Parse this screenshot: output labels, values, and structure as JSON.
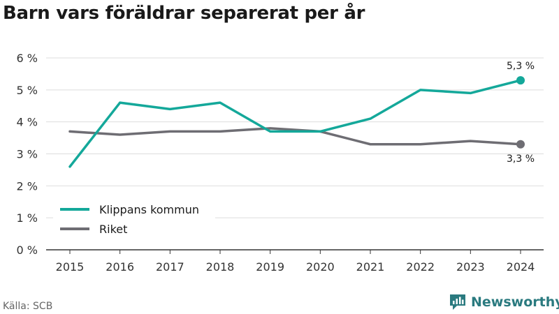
{
  "title": "Barn vars föräldrar separerat per år",
  "source": "Källa: SCB",
  "brand": "Newsworthy",
  "colors": {
    "klippan": "#14a89a",
    "riket": "#6e6d73",
    "grid": "#dddddd",
    "axis": "#333333",
    "brand": "#2a7a7f"
  },
  "icons": {
    "logo": "newsworthy-logo-icon"
  },
  "chart_data": {
    "type": "line",
    "title": "Barn vars föräldrar separerat per år",
    "x": [
      "2015",
      "2016",
      "2017",
      "2018",
      "2019",
      "2020",
      "2021",
      "2022",
      "2023",
      "2024"
    ],
    "y_ticks": [
      "0 %",
      "1 %",
      "2 %",
      "3 %",
      "4 %",
      "5 %",
      "6 %"
    ],
    "ylim": [
      0,
      6
    ],
    "grid": true,
    "legend_position": "bottom-left",
    "series": [
      {
        "name": "Klippans kommun",
        "color": "#14a89a",
        "values": [
          2.6,
          4.6,
          4.4,
          4.6,
          3.7,
          3.7,
          4.1,
          5.0,
          4.9,
          5.3
        ],
        "end_label": "5,3 %"
      },
      {
        "name": "Riket",
        "color": "#6e6d73",
        "values": [
          3.7,
          3.6,
          3.7,
          3.7,
          3.8,
          3.7,
          3.3,
          3.3,
          3.4,
          3.3
        ],
        "end_label": "3,3 %"
      }
    ]
  }
}
